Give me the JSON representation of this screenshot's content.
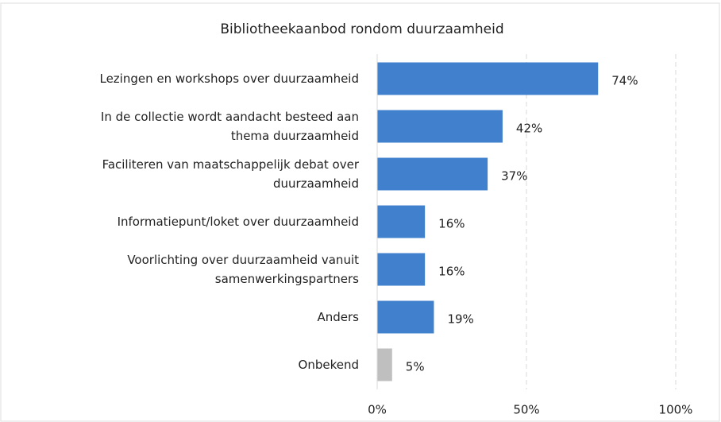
{
  "chart_data": {
    "type": "bar",
    "orientation": "horizontal",
    "title": "Bibliotheekaanbod rondom duurzaamheid",
    "categories": [
      [
        "Lezingen en workshops over duurzaamheid"
      ],
      [
        "In de collectie wordt aandacht besteed aan",
        "thema duurzaamheid"
      ],
      [
        "Faciliteren van maatschappelijk debat over",
        "duurzaamheid"
      ],
      [
        "Informatiepunt/loket over duurzaamheid"
      ],
      [
        "Voorlichting over duurzaamheid vanuit",
        "samenwerkingspartners"
      ],
      [
        "Anders"
      ],
      [
        "Onbekend"
      ]
    ],
    "values": [
      74,
      42,
      37,
      16,
      16,
      19,
      5
    ],
    "value_labels": [
      "74%",
      "42%",
      "37%",
      "16%",
      "16%",
      "19%",
      "5%"
    ],
    "colors": [
      "#4080cc",
      "#4080cc",
      "#4080cc",
      "#4080cc",
      "#4080cc",
      "#4080cc",
      "#bfbfbf"
    ],
    "xlim": [
      0,
      100
    ],
    "xticks": [
      {
        "value": 0,
        "label": "0%"
      },
      {
        "value": 50,
        "label": "50%"
      },
      {
        "value": 100,
        "label": "100%"
      }
    ],
    "grid": true
  }
}
